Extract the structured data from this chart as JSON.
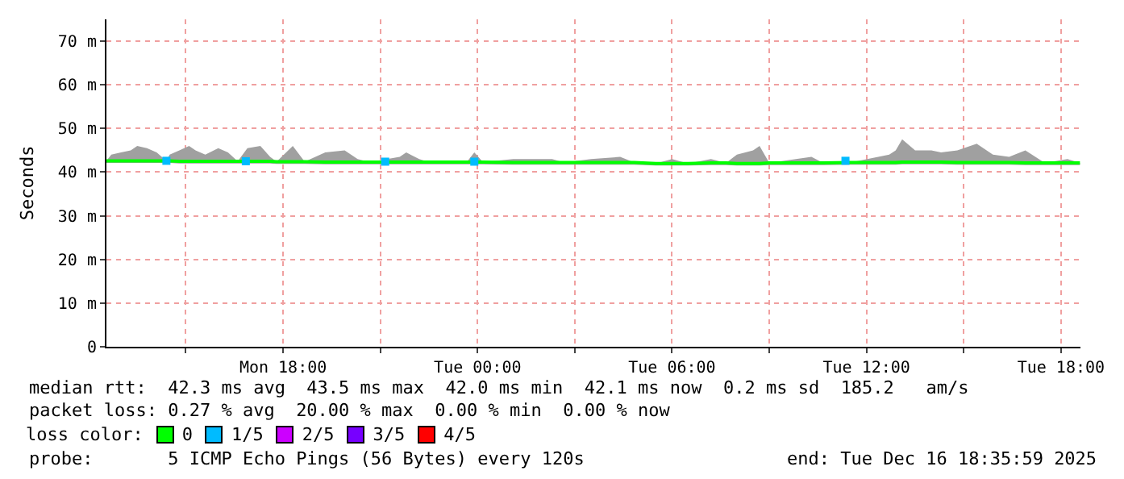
{
  "chart_data": {
    "type": "line",
    "ylabel": "Seconds",
    "xlim": [
      "2025-12-15T12:33",
      "2025-12-16T18:36"
    ],
    "xticks": [
      {
        "value": "2025-12-15T15:00",
        "label": null
      },
      {
        "value": "2025-12-15T18:00",
        "label": "Mon 18:00"
      },
      {
        "value": "2025-12-15T21:00",
        "label": null
      },
      {
        "value": "2025-12-16T00:00",
        "label": "Tue 00:00"
      },
      {
        "value": "2025-12-16T03:00",
        "label": null
      },
      {
        "value": "2025-12-16T06:00",
        "label": "Tue 06:00"
      },
      {
        "value": "2025-12-16T09:00",
        "label": null
      },
      {
        "value": "2025-12-16T12:00",
        "label": "Tue 12:00"
      },
      {
        "value": "2025-12-16T15:00",
        "label": null
      },
      {
        "value": "2025-12-16T18:00",
        "label": "Tue 18:00"
      }
    ],
    "ylim": [
      0,
      75
    ],
    "yticks": [
      0,
      {
        "value": 10,
        "label": "10 m"
      },
      {
        "value": 20,
        "label": "20 m"
      },
      {
        "value": 30,
        "label": "30 m"
      },
      {
        "value": 40,
        "label": "40 m"
      },
      {
        "value": 50,
        "label": "50 m"
      },
      {
        "value": 60,
        "label": "60 m"
      },
      {
        "value": 70,
        "label": "70 m"
      }
    ],
    "grid": true,
    "legend": "bottom",
    "legend_title": "loss color:",
    "series": [
      {
        "name": "0",
        "color": "#00ff00",
        "x": [
          "2025-12-15T12:33",
          "2025-12-15T12:42",
          "2025-12-15T13:00",
          "2025-12-15T13:18",
          "2025-12-15T13:30",
          "2025-12-15T13:48",
          "2025-12-15T14:06",
          "2025-12-15T14:24",
          "2025-12-15T14:30",
          "2025-12-15T14:48",
          "2025-12-15T15:06",
          "2025-12-15T15:18",
          "2025-12-15T15:36",
          "2025-12-15T16:00",
          "2025-12-15T16:18",
          "2025-12-15T16:36",
          "2025-12-15T16:54",
          "2025-12-15T17:18",
          "2025-12-15T17:36",
          "2025-12-15T17:48",
          "2025-12-15T18:18",
          "2025-12-15T18:40",
          "2025-12-15T19:18",
          "2025-12-15T19:54",
          "2025-12-15T20:18",
          "2025-12-15T20:40",
          "2025-12-15T21:36",
          "2025-12-15T21:48",
          "2025-12-15T22:12",
          "2025-12-15T22:30",
          "2025-12-15T23:40",
          "2025-12-15T23:54",
          "2025-12-16T00:10",
          "2025-12-16T01:06",
          "2025-12-16T01:36",
          "2025-12-16T02:18",
          "2025-12-16T02:40",
          "2025-12-16T03:30",
          "2025-12-16T04:24",
          "2025-12-16T04:50",
          "2025-12-16T05:30",
          "2025-12-16T06:00",
          "2025-12-16T06:30",
          "2025-12-16T07:12",
          "2025-12-16T07:40",
          "2025-12-16T08:00",
          "2025-12-16T08:30",
          "2025-12-16T08:42",
          "2025-12-16T09:00",
          "2025-12-16T10:18",
          "2025-12-16T10:40",
          "2025-12-16T11:30",
          "2025-12-16T12:42",
          "2025-12-16T12:54",
          "2025-12-16T13:06",
          "2025-12-16T13:30",
          "2025-12-16T14:00",
          "2025-12-16T14:18",
          "2025-12-16T14:48",
          "2025-12-16T15:24",
          "2025-12-16T15:54",
          "2025-12-16T16:24",
          "2025-12-16T16:54",
          "2025-12-16T17:30",
          "2025-12-16T18:12",
          "2025-12-16T18:35"
        ],
        "values": [
          42.6,
          42.6,
          42.6,
          42.6,
          42.6,
          42.6,
          42.6,
          42.6,
          42.6,
          42.5,
          42.5,
          42.5,
          42.5,
          42.5,
          42.5,
          42.5,
          42.5,
          42.5,
          42.5,
          42.4,
          42.4,
          42.4,
          42.3,
          42.3,
          42.3,
          42.3,
          42.3,
          42.3,
          42.3,
          42.3,
          42.3,
          42.3,
          42.3,
          42.2,
          42.2,
          42.2,
          42.2,
          42.2,
          42.2,
          42.2,
          42.0,
          42.0,
          42.0,
          42.1,
          42.1,
          42.0,
          42.0,
          42.0,
          42.1,
          42.1,
          42.1,
          42.2,
          42.2,
          42.2,
          42.3,
          42.3,
          42.3,
          42.3,
          42.2,
          42.2,
          42.2,
          42.2,
          42.1,
          42.1,
          42.1,
          42.1
        ],
        "lower": [
          42.1,
          42.1,
          42.1,
          42.1,
          42.1,
          42.1,
          42.1,
          42.1,
          42.1,
          42.0,
          42.0,
          42.0,
          42.0,
          42.0,
          42.0,
          42.0,
          42.0,
          42.0,
          42.0,
          41.9,
          41.9,
          41.9,
          41.8,
          41.8,
          41.8,
          41.8,
          41.8,
          41.8,
          41.8,
          41.8,
          41.8,
          41.8,
          41.8,
          41.7,
          41.7,
          41.7,
          41.7,
          41.7,
          41.7,
          41.7,
          41.5,
          41.5,
          41.5,
          41.6,
          41.6,
          41.5,
          41.5,
          41.5,
          41.6,
          41.6,
          41.6,
          41.7,
          41.7,
          41.7,
          41.8,
          41.8,
          41.8,
          41.8,
          41.7,
          41.7,
          41.7,
          41.7,
          41.6,
          41.6,
          41.6,
          41.6
        ],
        "upper": [
          42.6,
          44,
          44.5,
          45,
          46,
          45.5,
          44.5,
          42.6,
          44,
          45,
          46,
          45,
          44,
          45.5,
          44.5,
          42.5,
          45.5,
          46,
          43.5,
          42.4,
          46,
          42.4,
          44.5,
          45,
          43,
          42.3,
          43.5,
          44.5,
          43,
          42.3,
          42.3,
          44.5,
          42.3,
          43,
          43,
          43,
          42.2,
          43,
          43.5,
          42.2,
          42.0,
          43,
          42.0,
          43,
          42.1,
          44,
          45,
          46,
          42.1,
          43.5,
          42.1,
          42.2,
          44,
          45,
          47.5,
          45,
          45,
          44.5,
          45,
          46.5,
          44,
          43.5,
          45,
          42.1,
          43,
          42.1
        ]
      },
      {
        "type": "scatter",
        "name": "1/5",
        "color": "#00bbff",
        "marker": "square",
        "x": [
          "2025-12-15T14:24",
          "2025-12-15T16:51",
          "2025-12-15T21:09",
          "2025-12-15T23:54",
          "2025-12-16T11:21"
        ],
        "values": [
          42.6,
          42.5,
          42.4,
          42.4,
          42.6
        ]
      },
      {
        "type": "scatter",
        "name": "2/5",
        "color": "#cc00ff"
      },
      {
        "type": "scatter",
        "name": "3/5",
        "color": "#7700ff"
      },
      {
        "type": "scatter",
        "name": "4/5",
        "color": "#ff0000"
      }
    ],
    "annotations": [
      "median rtt:  42.3 ms avg  43.5 ms max  42.0 ms min  42.1 ms now  0.2 ms sd  185.2   am/s",
      "packet loss: 0.27 % avg  20.00 % max  0.00 % min  0.00 % now",
      "probe:       5 ICMP Echo Pings (56 Bytes) every 120s",
      "end: Tue Dec 16 18:35:59 2025"
    ]
  }
}
